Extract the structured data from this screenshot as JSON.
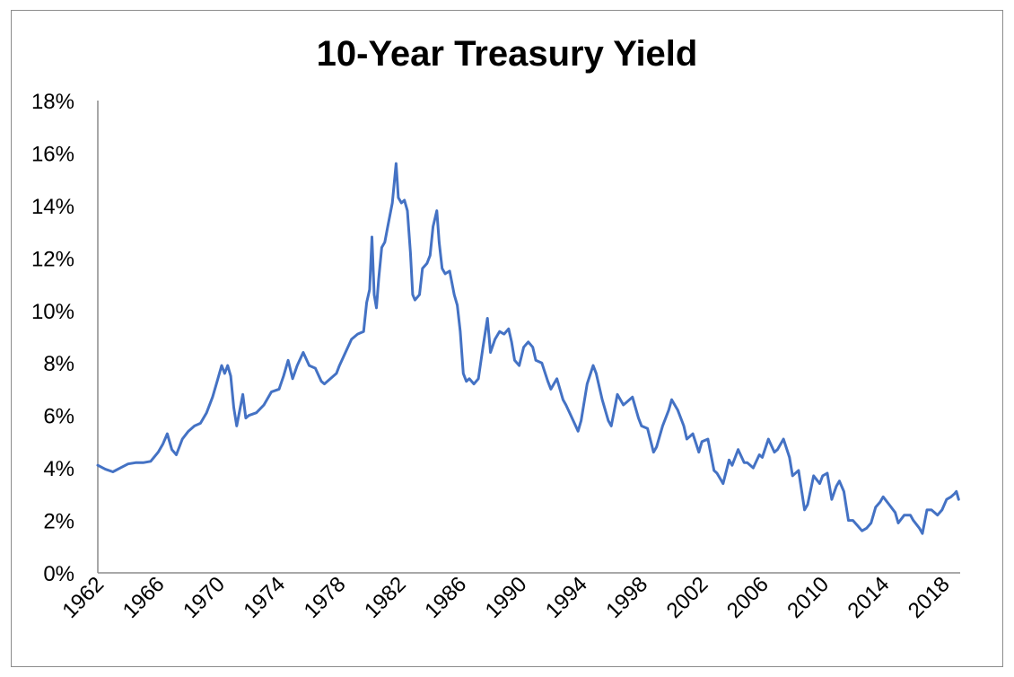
{
  "chart_data": {
    "type": "line",
    "title": "10-Year Treasury Yield",
    "xlabel": "",
    "ylabel": "",
    "xlim": [
      1962,
      2019.1
    ],
    "ylim": [
      0,
      18
    ],
    "y_ticks": [
      0,
      2,
      4,
      6,
      8,
      10,
      12,
      14,
      16,
      18
    ],
    "y_tick_labels": [
      "0%",
      "2%",
      "4%",
      "6%",
      "8%",
      "10%",
      "12%",
      "14%",
      "16%",
      "18%"
    ],
    "x_ticks": [
      1962,
      1966,
      1970,
      1974,
      1978,
      1982,
      1986,
      1990,
      1994,
      1998,
      2002,
      2006,
      2010,
      2014,
      2018
    ],
    "x_tick_labels": [
      "1962",
      "1966",
      "1970",
      "1974",
      "1978",
      "1982",
      "1986",
      "1990",
      "1994",
      "1998",
      "2002",
      "2006",
      "2010",
      "2014",
      "2018"
    ],
    "grid": false,
    "legend": "none",
    "colors": {
      "line": "#4472c4",
      "axis": "#8c8c8c",
      "text": "#000000"
    },
    "series": [
      {
        "values": [
          [
            1962.0,
            4.1
          ],
          [
            1962.5,
            3.95
          ],
          [
            1963.0,
            3.85
          ],
          [
            1963.5,
            4.0
          ],
          [
            1964.0,
            4.15
          ],
          [
            1964.5,
            4.2
          ],
          [
            1965.0,
            4.2
          ],
          [
            1965.5,
            4.25
          ],
          [
            1966.0,
            4.6
          ],
          [
            1966.3,
            4.9
          ],
          [
            1966.6,
            5.3
          ],
          [
            1966.9,
            4.7
          ],
          [
            1967.2,
            4.5
          ],
          [
            1967.6,
            5.1
          ],
          [
            1968.0,
            5.4
          ],
          [
            1968.4,
            5.6
          ],
          [
            1968.8,
            5.7
          ],
          [
            1969.2,
            6.1
          ],
          [
            1969.6,
            6.7
          ],
          [
            1969.9,
            7.3
          ],
          [
            1970.2,
            7.9
          ],
          [
            1970.4,
            7.6
          ],
          [
            1970.6,
            7.9
          ],
          [
            1970.8,
            7.5
          ],
          [
            1971.0,
            6.3
          ],
          [
            1971.2,
            5.6
          ],
          [
            1971.4,
            6.2
          ],
          [
            1971.6,
            6.8
          ],
          [
            1971.8,
            5.9
          ],
          [
            1972.0,
            6.0
          ],
          [
            1972.5,
            6.1
          ],
          [
            1973.0,
            6.4
          ],
          [
            1973.5,
            6.9
          ],
          [
            1974.0,
            7.0
          ],
          [
            1974.3,
            7.5
          ],
          [
            1974.6,
            8.1
          ],
          [
            1974.9,
            7.4
          ],
          [
            1975.2,
            7.9
          ],
          [
            1975.6,
            8.4
          ],
          [
            1976.0,
            7.9
          ],
          [
            1976.4,
            7.8
          ],
          [
            1976.8,
            7.3
          ],
          [
            1977.0,
            7.2
          ],
          [
            1977.4,
            7.4
          ],
          [
            1977.8,
            7.6
          ],
          [
            1978.0,
            7.9
          ],
          [
            1978.4,
            8.4
          ],
          [
            1978.8,
            8.9
          ],
          [
            1979.2,
            9.1
          ],
          [
            1979.6,
            9.2
          ],
          [
            1979.8,
            10.3
          ],
          [
            1980.0,
            10.8
          ],
          [
            1980.15,
            12.8
          ],
          [
            1980.3,
            10.6
          ],
          [
            1980.45,
            10.1
          ],
          [
            1980.6,
            11.2
          ],
          [
            1980.8,
            12.4
          ],
          [
            1981.0,
            12.6
          ],
          [
            1981.2,
            13.2
          ],
          [
            1981.5,
            14.1
          ],
          [
            1981.75,
            15.6
          ],
          [
            1981.9,
            14.3
          ],
          [
            1982.1,
            14.1
          ],
          [
            1982.3,
            14.2
          ],
          [
            1982.5,
            13.8
          ],
          [
            1982.7,
            12.2
          ],
          [
            1982.85,
            10.6
          ],
          [
            1983.0,
            10.4
          ],
          [
            1983.3,
            10.6
          ],
          [
            1983.5,
            11.6
          ],
          [
            1983.8,
            11.8
          ],
          [
            1984.0,
            12.1
          ],
          [
            1984.2,
            13.2
          ],
          [
            1984.45,
            13.8
          ],
          [
            1984.6,
            12.6
          ],
          [
            1984.8,
            11.6
          ],
          [
            1985.0,
            11.4
          ],
          [
            1985.3,
            11.5
          ],
          [
            1985.6,
            10.6
          ],
          [
            1985.8,
            10.2
          ],
          [
            1986.0,
            9.2
          ],
          [
            1986.2,
            7.6
          ],
          [
            1986.4,
            7.3
          ],
          [
            1986.6,
            7.4
          ],
          [
            1986.9,
            7.2
          ],
          [
            1987.2,
            7.4
          ],
          [
            1987.5,
            8.6
          ],
          [
            1987.8,
            9.7
          ],
          [
            1988.0,
            8.4
          ],
          [
            1988.3,
            8.9
          ],
          [
            1988.6,
            9.2
          ],
          [
            1988.9,
            9.1
          ],
          [
            1989.2,
            9.3
          ],
          [
            1989.4,
            8.8
          ],
          [
            1989.6,
            8.1
          ],
          [
            1989.9,
            7.9
          ],
          [
            1990.2,
            8.6
          ],
          [
            1990.5,
            8.8
          ],
          [
            1990.8,
            8.6
          ],
          [
            1991.0,
            8.1
          ],
          [
            1991.4,
            8.0
          ],
          [
            1991.8,
            7.3
          ],
          [
            1992.0,
            7.0
          ],
          [
            1992.4,
            7.4
          ],
          [
            1992.8,
            6.6
          ],
          [
            1993.0,
            6.4
          ],
          [
            1993.4,
            5.9
          ],
          [
            1993.8,
            5.4
          ],
          [
            1994.0,
            5.8
          ],
          [
            1994.4,
            7.2
          ],
          [
            1994.8,
            7.9
          ],
          [
            1995.0,
            7.6
          ],
          [
            1995.4,
            6.6
          ],
          [
            1995.8,
            5.8
          ],
          [
            1996.0,
            5.6
          ],
          [
            1996.4,
            6.8
          ],
          [
            1996.8,
            6.4
          ],
          [
            1997.0,
            6.5
          ],
          [
            1997.4,
            6.7
          ],
          [
            1997.8,
            5.9
          ],
          [
            1998.0,
            5.6
          ],
          [
            1998.4,
            5.5
          ],
          [
            1998.8,
            4.6
          ],
          [
            1999.0,
            4.8
          ],
          [
            1999.4,
            5.6
          ],
          [
            1999.8,
            6.2
          ],
          [
            2000.0,
            6.6
          ],
          [
            2000.4,
            6.2
          ],
          [
            2000.8,
            5.6
          ],
          [
            2001.0,
            5.1
          ],
          [
            2001.4,
            5.3
          ],
          [
            2001.8,
            4.6
          ],
          [
            2002.0,
            5.0
          ],
          [
            2002.4,
            5.1
          ],
          [
            2002.8,
            3.9
          ],
          [
            2003.0,
            3.8
          ],
          [
            2003.4,
            3.4
          ],
          [
            2003.8,
            4.3
          ],
          [
            2004.0,
            4.1
          ],
          [
            2004.4,
            4.7
          ],
          [
            2004.8,
            4.2
          ],
          [
            2005.0,
            4.2
          ],
          [
            2005.4,
            4.0
          ],
          [
            2005.8,
            4.5
          ],
          [
            2006.0,
            4.4
          ],
          [
            2006.4,
            5.1
          ],
          [
            2006.8,
            4.6
          ],
          [
            2007.0,
            4.7
          ],
          [
            2007.4,
            5.1
          ],
          [
            2007.8,
            4.4
          ],
          [
            2008.0,
            3.7
          ],
          [
            2008.4,
            3.9
          ],
          [
            2008.8,
            2.4
          ],
          [
            2009.0,
            2.6
          ],
          [
            2009.4,
            3.7
          ],
          [
            2009.8,
            3.4
          ],
          [
            2010.0,
            3.7
          ],
          [
            2010.3,
            3.8
          ],
          [
            2010.6,
            2.8
          ],
          [
            2010.9,
            3.3
          ],
          [
            2011.1,
            3.5
          ],
          [
            2011.4,
            3.1
          ],
          [
            2011.7,
            2.0
          ],
          [
            2012.0,
            2.0
          ],
          [
            2012.3,
            1.8
          ],
          [
            2012.6,
            1.6
          ],
          [
            2012.9,
            1.7
          ],
          [
            2013.2,
            1.9
          ],
          [
            2013.5,
            2.5
          ],
          [
            2013.8,
            2.7
          ],
          [
            2014.0,
            2.9
          ],
          [
            2014.4,
            2.6
          ],
          [
            2014.8,
            2.3
          ],
          [
            2015.0,
            1.9
          ],
          [
            2015.4,
            2.2
          ],
          [
            2015.8,
            2.2
          ],
          [
            2016.0,
            2.0
          ],
          [
            2016.4,
            1.7
          ],
          [
            2016.6,
            1.5
          ],
          [
            2016.9,
            2.4
          ],
          [
            2017.2,
            2.4
          ],
          [
            2017.6,
            2.2
          ],
          [
            2017.9,
            2.4
          ],
          [
            2018.2,
            2.8
          ],
          [
            2018.5,
            2.9
          ],
          [
            2018.7,
            3.0
          ],
          [
            2018.85,
            3.1
          ],
          [
            2019.0,
            2.8
          ]
        ]
      }
    ]
  }
}
